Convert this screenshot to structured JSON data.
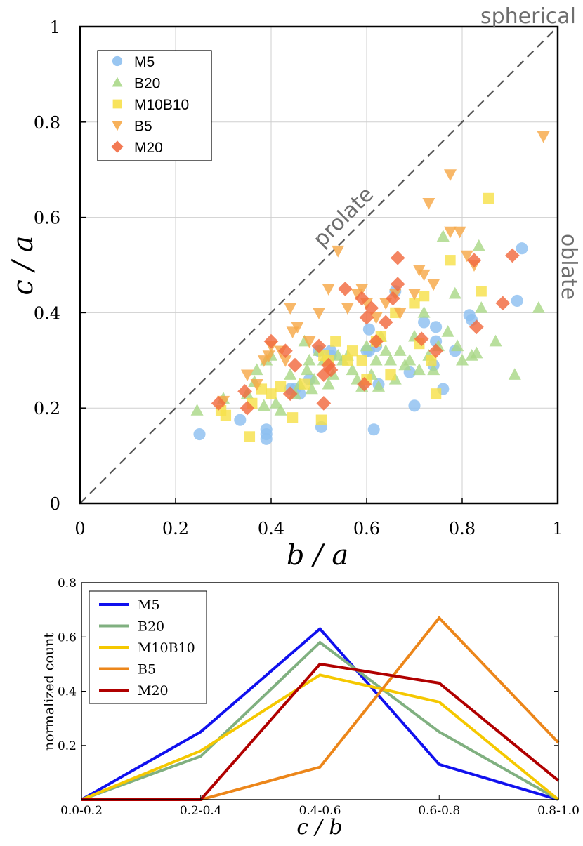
{
  "chart_data": [
    {
      "type": "scatter",
      "xlabel": "b / a",
      "ylabel": "c / a",
      "xlim": [
        0,
        1
      ],
      "ylim": [
        0,
        1
      ],
      "xticks": [
        "0",
        "0.2",
        "0.4",
        "0.6",
        "0.8",
        "1"
      ],
      "yticks": [
        "0",
        "0.2",
        "0.4",
        "0.6",
        "0.8",
        "1"
      ],
      "grid": true,
      "legend_position": "top-left",
      "annotations": {
        "spherical": "spherical",
        "prolate": "prolate",
        "oblate": "oblate"
      },
      "series": [
        {
          "name": "M5",
          "marker": "circle",
          "color": "#8ec0f0",
          "points": [
            [
              0.25,
              0.145
            ],
            [
              0.335,
              0.175
            ],
            [
              0.39,
              0.155
            ],
            [
              0.39,
              0.135
            ],
            [
              0.39,
              0.145
            ],
            [
              0.44,
              0.24
            ],
            [
              0.45,
              0.24
            ],
            [
              0.46,
              0.23
            ],
            [
              0.48,
              0.26
            ],
            [
              0.5,
              0.32
            ],
            [
              0.505,
              0.16
            ],
            [
              0.525,
              0.31
            ],
            [
              0.525,
              0.32
            ],
            [
              0.6,
              0.32
            ],
            [
              0.605,
              0.32
            ],
            [
              0.605,
              0.365
            ],
            [
              0.615,
              0.155
            ],
            [
              0.62,
              0.33
            ],
            [
              0.625,
              0.25
            ],
            [
              0.66,
              0.445
            ],
            [
              0.69,
              0.275
            ],
            [
              0.7,
              0.205
            ],
            [
              0.72,
              0.38
            ],
            [
              0.74,
              0.29
            ],
            [
              0.745,
              0.37
            ],
            [
              0.745,
              0.34
            ],
            [
              0.76,
              0.24
            ],
            [
              0.785,
              0.32
            ],
            [
              0.815,
              0.395
            ],
            [
              0.82,
              0.385
            ],
            [
              0.915,
              0.425
            ],
            [
              0.925,
              0.535
            ]
          ]
        },
        {
          "name": "B20",
          "marker": "triangle",
          "color": "#aad888",
          "points": [
            [
              0.245,
              0.195
            ],
            [
              0.3,
              0.22
            ],
            [
              0.35,
              0.23
            ],
            [
              0.365,
              0.255
            ],
            [
              0.37,
              0.28
            ],
            [
              0.385,
              0.205
            ],
            [
              0.39,
              0.3
            ],
            [
              0.4,
              0.31
            ],
            [
              0.41,
              0.21
            ],
            [
              0.42,
              0.195
            ],
            [
              0.44,
              0.27
            ],
            [
              0.45,
              0.23
            ],
            [
              0.46,
              0.25
            ],
            [
              0.47,
              0.34
            ],
            [
              0.475,
              0.28
            ],
            [
              0.48,
              0.3
            ],
            [
              0.485,
              0.24
            ],
            [
              0.49,
              0.26
            ],
            [
              0.5,
              0.32
            ],
            [
              0.51,
              0.3
            ],
            [
              0.52,
              0.25
            ],
            [
              0.53,
              0.27
            ],
            [
              0.54,
              0.31
            ],
            [
              0.55,
              0.3
            ],
            [
              0.56,
              0.31
            ],
            [
              0.57,
              0.28
            ],
            [
              0.58,
              0.26
            ],
            [
              0.59,
              0.245
            ],
            [
              0.6,
              0.33
            ],
            [
              0.61,
              0.27
            ],
            [
              0.62,
              0.3
            ],
            [
              0.625,
              0.245
            ],
            [
              0.63,
              0.35
            ],
            [
              0.64,
              0.32
            ],
            [
              0.65,
              0.3
            ],
            [
              0.66,
              0.26
            ],
            [
              0.67,
              0.32
            ],
            [
              0.68,
              0.29
            ],
            [
              0.69,
              0.3
            ],
            [
              0.7,
              0.35
            ],
            [
              0.71,
              0.28
            ],
            [
              0.72,
              0.4
            ],
            [
              0.73,
              0.31
            ],
            [
              0.74,
              0.28
            ],
            [
              0.75,
              0.33
            ],
            [
              0.76,
              0.56
            ],
            [
              0.77,
              0.36
            ],
            [
              0.785,
              0.44
            ],
            [
              0.79,
              0.33
            ],
            [
              0.8,
              0.3
            ],
            [
              0.82,
              0.31
            ],
            [
              0.83,
              0.315
            ],
            [
              0.835,
              0.54
            ],
            [
              0.84,
              0.41
            ],
            [
              0.87,
              0.34
            ],
            [
              0.91,
              0.27
            ],
            [
              0.96,
              0.41
            ]
          ]
        },
        {
          "name": "M10B10",
          "marker": "square",
          "color": "#f7e04a",
          "points": [
            [
              0.295,
              0.195
            ],
            [
              0.305,
              0.185
            ],
            [
              0.355,
              0.14
            ],
            [
              0.36,
              0.21
            ],
            [
              0.38,
              0.24
            ],
            [
              0.4,
              0.23
            ],
            [
              0.42,
              0.245
            ],
            [
              0.445,
              0.18
            ],
            [
              0.47,
              0.25
            ],
            [
              0.505,
              0.175
            ],
            [
              0.51,
              0.31
            ],
            [
              0.52,
              0.3
            ],
            [
              0.535,
              0.34
            ],
            [
              0.56,
              0.3
            ],
            [
              0.57,
              0.32
            ],
            [
              0.59,
              0.3
            ],
            [
              0.6,
              0.26
            ],
            [
              0.62,
              0.34
            ],
            [
              0.63,
              0.35
            ],
            [
              0.65,
              0.27
            ],
            [
              0.66,
              0.4
            ],
            [
              0.7,
              0.42
            ],
            [
              0.71,
              0.335
            ],
            [
              0.72,
              0.435
            ],
            [
              0.735,
              0.3
            ],
            [
              0.745,
              0.23
            ],
            [
              0.775,
              0.51
            ],
            [
              0.84,
              0.445
            ],
            [
              0.855,
              0.64
            ]
          ]
        },
        {
          "name": "B5",
          "marker": "triangle-down",
          "color": "#f6a848",
          "points": [
            [
              0.3,
              0.215
            ],
            [
              0.35,
              0.27
            ],
            [
              0.37,
              0.25
            ],
            [
              0.385,
              0.3
            ],
            [
              0.395,
              0.31
            ],
            [
              0.4,
              0.33
            ],
            [
              0.42,
              0.32
            ],
            [
              0.43,
              0.3
            ],
            [
              0.44,
              0.41
            ],
            [
              0.445,
              0.36
            ],
            [
              0.455,
              0.37
            ],
            [
              0.48,
              0.34
            ],
            [
              0.5,
              0.4
            ],
            [
              0.52,
              0.45
            ],
            [
              0.54,
              0.53
            ],
            [
              0.56,
              0.41
            ],
            [
              0.58,
              0.44
            ],
            [
              0.59,
              0.45
            ],
            [
              0.6,
              0.42
            ],
            [
              0.62,
              0.39
            ],
            [
              0.64,
              0.42
            ],
            [
              0.66,
              0.44
            ],
            [
              0.67,
              0.4
            ],
            [
              0.7,
              0.44
            ],
            [
              0.71,
              0.49
            ],
            [
              0.72,
              0.48
            ],
            [
              0.73,
              0.63
            ],
            [
              0.74,
              0.46
            ],
            [
              0.775,
              0.57
            ],
            [
              0.775,
              0.69
            ],
            [
              0.795,
              0.57
            ],
            [
              0.81,
              0.52
            ],
            [
              0.825,
              0.5
            ],
            [
              0.97,
              0.77
            ]
          ]
        },
        {
          "name": "M20",
          "marker": "diamond",
          "color": "#f26a40",
          "points": [
            [
              0.29,
              0.21
            ],
            [
              0.345,
              0.235
            ],
            [
              0.35,
              0.2
            ],
            [
              0.4,
              0.34
            ],
            [
              0.43,
              0.32
            ],
            [
              0.44,
              0.23
            ],
            [
              0.45,
              0.29
            ],
            [
              0.5,
              0.33
            ],
            [
              0.51,
              0.27
            ],
            [
              0.51,
              0.21
            ],
            [
              0.52,
              0.29
            ],
            [
              0.525,
              0.28
            ],
            [
              0.555,
              0.45
            ],
            [
              0.59,
              0.43
            ],
            [
              0.595,
              0.25
            ],
            [
              0.6,
              0.39
            ],
            [
              0.61,
              0.41
            ],
            [
              0.62,
              0.34
            ],
            [
              0.64,
              0.38
            ],
            [
              0.655,
              0.43
            ],
            [
              0.665,
              0.46
            ],
            [
              0.665,
              0.515
            ],
            [
              0.715,
              0.345
            ],
            [
              0.745,
              0.32
            ],
            [
              0.825,
              0.51
            ],
            [
              0.83,
              0.37
            ],
            [
              0.885,
              0.42
            ],
            [
              0.905,
              0.52
            ]
          ]
        }
      ]
    },
    {
      "type": "line",
      "xlabel": "c / b",
      "ylabel": "normalized count",
      "categories": [
        "0.0-0.2",
        "0.2-0.4",
        "0.4-0.6",
        "0.6-0.8",
        "0.8-1.0"
      ],
      "ylim": [
        0,
        0.8
      ],
      "yticks": [
        "0.2",
        "0.4",
        "0.6",
        "0.8"
      ],
      "legend_position": "top-left",
      "series": [
        {
          "name": "M5",
          "color": "#1010ee",
          "values": [
            0,
            0.25,
            0.63,
            0.13,
            0
          ]
        },
        {
          "name": "B20",
          "color": "#80b080",
          "values": [
            0,
            0.16,
            0.58,
            0.25,
            0
          ]
        },
        {
          "name": "M10B10",
          "color": "#f5c800",
          "values": [
            0,
            0.18,
            0.46,
            0.36,
            0
          ]
        },
        {
          "name": "B5",
          "color": "#ec861a",
          "values": [
            0,
            0,
            0.12,
            0.67,
            0.21
          ]
        },
        {
          "name": "M20",
          "color": "#b00000",
          "values": [
            0,
            0,
            0.5,
            0.43,
            0.07
          ]
        }
      ]
    }
  ]
}
